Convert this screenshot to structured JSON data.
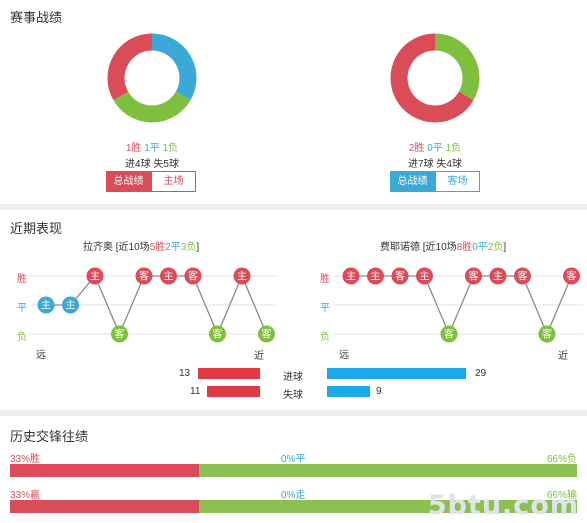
{
  "record": {
    "title": "赛事战绩",
    "teams": [
      {
        "win": 1,
        "draw": 1,
        "loss": 1,
        "win_text": "1胜",
        "draw_text": "1平",
        "loss_text": "1负",
        "goals_text": "进4球 失5球",
        "btn_primary": "总战绩",
        "btn_secondary": "主场",
        "theme": "#d94c58"
      },
      {
        "win": 2,
        "draw": 0,
        "loss": 1,
        "win_text": "2胜",
        "draw_text": "0平",
        "loss_text": "1负",
        "goals_text": "进7球 失4球",
        "btn_primary": "总战绩",
        "btn_secondary": "客场",
        "theme": "#3aa9d6"
      }
    ]
  },
  "recent": {
    "title": "近期表现",
    "y_labels": {
      "win": "胜",
      "draw": "平",
      "loss": "负"
    },
    "far_label": "远",
    "near_label": "近",
    "teams": [
      {
        "name": "拉齐奥",
        "hdr_prefix": "[近10场",
        "w": "5胜",
        "d": "2平",
        "l": "3负",
        "hdr_suffix": "]",
        "games": [
          {
            "r": "d",
            "ha": "主"
          },
          {
            "r": "d",
            "ha": "主"
          },
          {
            "r": "w",
            "ha": "主"
          },
          {
            "r": "l",
            "ha": "客"
          },
          {
            "r": "w",
            "ha": "客"
          },
          {
            "r": "w",
            "ha": "主"
          },
          {
            "r": "w",
            "ha": "客"
          },
          {
            "r": "l",
            "ha": "客"
          },
          {
            "r": "w",
            "ha": "主"
          },
          {
            "r": "l",
            "ha": "客"
          }
        ]
      },
      {
        "name": "费耶诺德",
        "hdr_prefix": "[近10场",
        "w": "8胜",
        "d": "0平",
        "l": "2负",
        "hdr_suffix": "]",
        "games": [
          {
            "r": "w",
            "ha": "主"
          },
          {
            "r": "w",
            "ha": "主"
          },
          {
            "r": "w",
            "ha": "客"
          },
          {
            "r": "w",
            "ha": "主"
          },
          {
            "r": "l",
            "ha": "客"
          },
          {
            "r": "w",
            "ha": "客"
          },
          {
            "r": "w",
            "ha": "主"
          },
          {
            "r": "w",
            "ha": "客"
          },
          {
            "r": "l",
            "ha": "客"
          },
          {
            "r": "w",
            "ha": "客"
          }
        ]
      }
    ],
    "goals": {
      "scored_label": "进球",
      "conceded_label": "失球",
      "home_scored": 13,
      "home_conceded": 11,
      "away_scored": 29,
      "away_conceded": 9
    }
  },
  "history": {
    "title": "历史交锋往绩",
    "rows": [
      {
        "left": "33%胜",
        "mid": "0%平",
        "right": "66%负",
        "left_pct": 33,
        "mid_pct": 0,
        "right_pct": 66
      },
      {
        "left": "33%赢",
        "mid": "0%走",
        "right": "66%输",
        "left_pct": 33,
        "mid_pct": 0,
        "right_pct": 66
      }
    ]
  },
  "colors": {
    "win": "#d94c58",
    "draw": "#3aa9d6",
    "loss": "#7fbf3e",
    "blue_bar": "#1ba9e8",
    "bar_green": "#8cc152"
  },
  "watermark": "5btu.com"
}
